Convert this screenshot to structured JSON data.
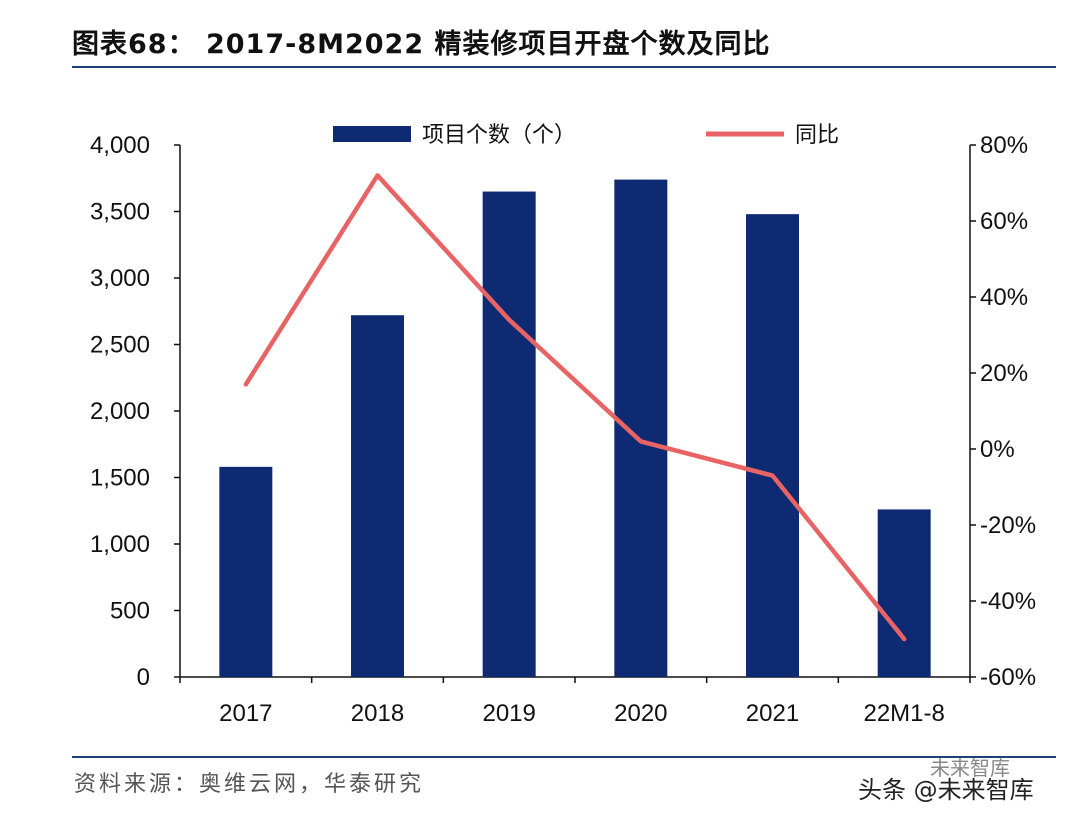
{
  "header": {
    "title": "图表68： 2017-8M2022 精装修项目开盘个数及同比"
  },
  "footer": {
    "source": "资料来源：奥维云网，华泰研究"
  },
  "watermark": {
    "text": "头条 @未来智库",
    "brand": "未来智库"
  },
  "chart_data": {
    "type": "bar",
    "title": "2017-8M2022 精装修项目开盘个数及同比",
    "categories": [
      "2017",
      "2018",
      "2019",
      "2020",
      "2021",
      "22M1-8"
    ],
    "series": [
      {
        "name": "项目个数（个）",
        "type": "bar",
        "axis": "left",
        "values": [
          1580,
          2720,
          3650,
          3740,
          3480,
          1260
        ],
        "color": "#0e2a73"
      },
      {
        "name": "同比",
        "type": "line",
        "axis": "right",
        "values": [
          17,
          72,
          34,
          2,
          -7,
          -50
        ],
        "color": "#e86464"
      }
    ],
    "y_left": {
      "min": 0,
      "max": 4000,
      "step": 500,
      "tick_labels": [
        "0",
        "500",
        "1,000",
        "1,500",
        "2,000",
        "2,500",
        "3,000",
        "3,500",
        "4,000"
      ]
    },
    "y_right": {
      "min": -60,
      "max": 80,
      "step": 20,
      "tick_labels": [
        "-60%",
        "-40%",
        "-20%",
        "0%",
        "20%",
        "40%",
        "60%",
        "80%"
      ]
    },
    "legend": {
      "position": "top-center"
    },
    "grid": false
  }
}
